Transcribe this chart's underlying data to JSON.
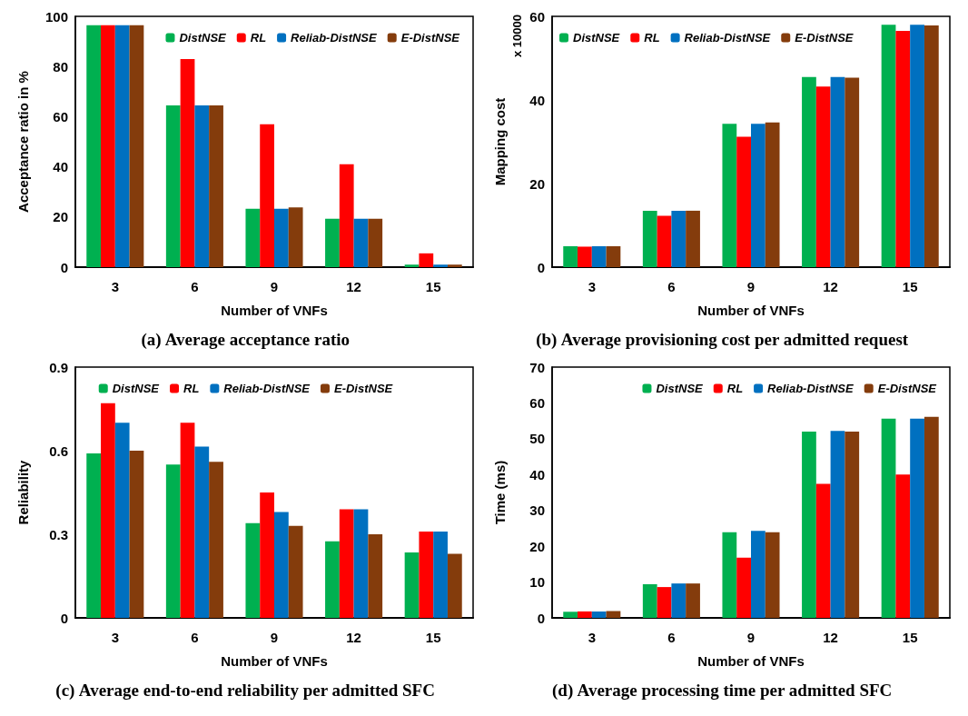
{
  "chart_data": [
    {
      "type": "bar",
      "title": "(a) Average acceptance ratio",
      "xlabel": "Number of VNFs",
      "ylabel": "Acceptance ratio in %",
      "categories": [
        "3",
        "6",
        "9",
        "12",
        "15"
      ],
      "ylim": [
        0,
        100
      ],
      "yticks": [
        0,
        20,
        40,
        60,
        80,
        100
      ],
      "grid": false,
      "legend": "top right",
      "series": [
        {
          "name": "DistNSE",
          "color": "#00b050",
          "values": [
            96.5,
            64.5,
            23.3,
            19.3,
            1
          ]
        },
        {
          "name": "RL",
          "color": "#ff0000",
          "values": [
            96.5,
            83,
            57,
            41,
            5.5
          ]
        },
        {
          "name": "Reliab-DistNSE",
          "color": "#0070c0",
          "values": [
            96.5,
            64.5,
            23.3,
            19.3,
            1
          ]
        },
        {
          "name": "E-DistNSE",
          "color": "#843c0c",
          "values": [
            96.5,
            64.5,
            23.8,
            19.3,
            1
          ]
        }
      ]
    },
    {
      "type": "bar",
      "title": "(b) Average provisioning cost per admitted request",
      "xlabel": "Number of VNFs",
      "ylabel": "Mapping cost",
      "annotations": [
        "x 10000"
      ],
      "categories": [
        "3",
        "6",
        "9",
        "12",
        "15"
      ],
      "ylim": [
        0,
        60
      ],
      "yticks": [
        0,
        20,
        40,
        60
      ],
      "grid": false,
      "legend": "top left",
      "series": [
        {
          "name": "DistNSE",
          "color": "#00b050",
          "values": [
            5,
            13.5,
            34.3,
            45.5,
            58
          ]
        },
        {
          "name": "RL",
          "color": "#ff0000",
          "values": [
            4.9,
            12.3,
            31.2,
            43.2,
            56.5
          ]
        },
        {
          "name": "Reliab-DistNSE",
          "color": "#0070c0",
          "values": [
            5,
            13.5,
            34.3,
            45.5,
            58
          ]
        },
        {
          "name": "E-DistNSE",
          "color": "#843c0c",
          "values": [
            5,
            13.5,
            34.6,
            45.3,
            57.8
          ]
        }
      ]
    },
    {
      "type": "bar",
      "title": "(c) Average end-to-end reliability per admitted SFC",
      "xlabel": "Number of VNFs",
      "ylabel": "Reliability",
      "categories": [
        "3",
        "6",
        "9",
        "12",
        "15"
      ],
      "ylim": [
        0,
        0.9
      ],
      "yticks": [
        0,
        0.3,
        0.6,
        0.9
      ],
      "grid": false,
      "legend": "top",
      "series": [
        {
          "name": "DistNSE",
          "color": "#00b050",
          "values": [
            0.59,
            0.55,
            0.34,
            0.275,
            0.235
          ]
        },
        {
          "name": "RL",
          "color": "#ff0000",
          "values": [
            0.77,
            0.7,
            0.45,
            0.39,
            0.31
          ]
        },
        {
          "name": "Reliab-DistNSE",
          "color": "#0070c0",
          "values": [
            0.7,
            0.615,
            0.38,
            0.39,
            0.31
          ]
        },
        {
          "name": "E-DistNSE",
          "color": "#843c0c",
          "values": [
            0.6,
            0.56,
            0.33,
            0.3,
            0.23
          ]
        }
      ]
    },
    {
      "type": "bar",
      "title": "(d) Average processing time per admitted SFC",
      "xlabel": "Number of VNFs",
      "ylabel": "Time (ms)",
      "categories": [
        "3",
        "6",
        "9",
        "12",
        "15"
      ],
      "ylim": [
        0,
        70
      ],
      "yticks": [
        0,
        10,
        20,
        30,
        40,
        50,
        60,
        70
      ],
      "grid": false,
      "legend": "top right",
      "series": [
        {
          "name": "DistNSE",
          "color": "#00b050",
          "values": [
            1.7,
            9.4,
            23.9,
            52,
            55.6
          ]
        },
        {
          "name": "RL",
          "color": "#ff0000",
          "values": [
            1.8,
            8.6,
            16.8,
            37.4,
            40
          ]
        },
        {
          "name": "Reliab-DistNSE",
          "color": "#0070c0",
          "values": [
            1.8,
            9.6,
            24.3,
            52.2,
            55.6
          ]
        },
        {
          "name": "E-DistNSE",
          "color": "#843c0c",
          "values": [
            1.9,
            9.6,
            23.9,
            52,
            56.1
          ]
        }
      ]
    }
  ]
}
